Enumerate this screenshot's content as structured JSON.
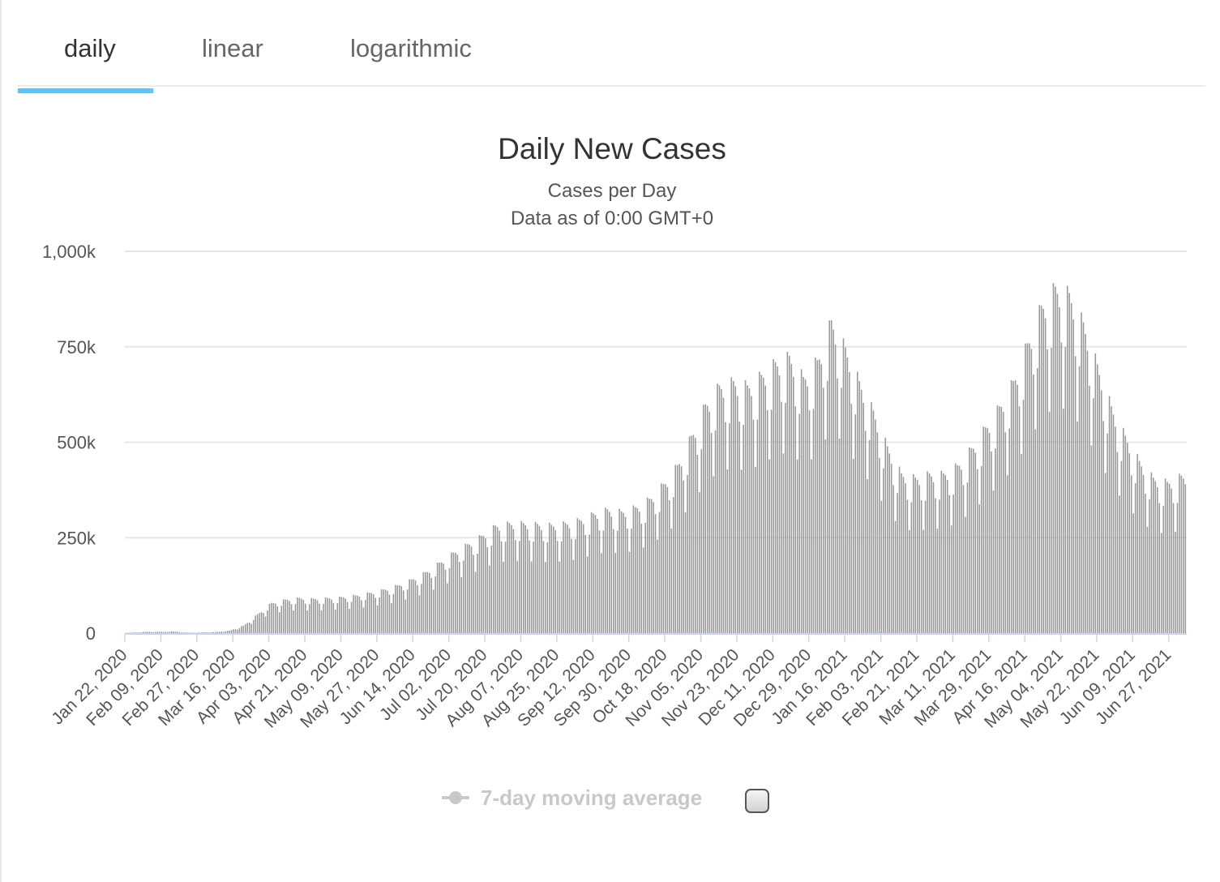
{
  "tabs": [
    {
      "label": "daily",
      "active": true
    },
    {
      "label": "linear",
      "active": false
    },
    {
      "label": "logarithmic",
      "active": false
    }
  ],
  "colors": {
    "tab_indicator": "#62c2f2",
    "bars": "#999999",
    "grid": "#e6e6e6",
    "legend_inactive": "#c8c8c8"
  },
  "legend": {
    "label": "7-day moving average",
    "enabled": false
  },
  "chart_data": {
    "type": "bar",
    "title": "Daily New Cases",
    "subtitle_lines": [
      "Cases per Day",
      "Data as of 0:00 GMT+0"
    ],
    "ylim": [
      0,
      1000000
    ],
    "yticks": [
      {
        "value": 0,
        "label": "0"
      },
      {
        "value": 250000,
        "label": "250k"
      },
      {
        "value": 500000,
        "label": "500k"
      },
      {
        "value": 750000,
        "label": "750k"
      },
      {
        "value": 1000000,
        "label": "1,000k"
      }
    ],
    "x_start": "2020-01-22",
    "x_end": "2021-07-05",
    "xtick_labels": [
      "Jan 22, 2020",
      "Feb 09, 2020",
      "Feb 27, 2020",
      "Mar 16, 2020",
      "Apr 03, 2020",
      "Apr 21, 2020",
      "May 09, 2020",
      "May 27, 2020",
      "Jun 14, 2020",
      "Jul 02, 2020",
      "Jul 20, 2020",
      "Aug 07, 2020",
      "Aug 25, 2020",
      "Sep 12, 2020",
      "Sep 30, 2020",
      "Oct 18, 2020",
      "Nov 05, 2020",
      "Nov 23, 2020",
      "Dec 11, 2020",
      "Dec 29, 2020",
      "Jan 16, 2021",
      "Feb 03, 2021",
      "Feb 21, 2021",
      "Mar 11, 2021",
      "Mar 29, 2021",
      "Apr 16, 2021",
      "May 04, 2021",
      "May 22, 2021",
      "Jun 09, 2021",
      "Jun 27, 2021"
    ],
    "weekly_avg": [
      {
        "week_of": "2020-01-22",
        "value": 1000
      },
      {
        "week_of": "2020-01-29",
        "value": 3000
      },
      {
        "week_of": "2020-02-05",
        "value": 3000
      },
      {
        "week_of": "2020-02-12",
        "value": 4000
      },
      {
        "week_of": "2020-02-19",
        "value": 1000
      },
      {
        "week_of": "2020-02-26",
        "value": 1500
      },
      {
        "week_of": "2020-03-04",
        "value": 2500
      },
      {
        "week_of": "2020-03-11",
        "value": 6000
      },
      {
        "week_of": "2020-03-18",
        "value": 18000
      },
      {
        "week_of": "2020-03-25",
        "value": 45000
      },
      {
        "week_of": "2020-04-01",
        "value": 72000
      },
      {
        "week_of": "2020-04-08",
        "value": 80000
      },
      {
        "week_of": "2020-04-15",
        "value": 84000
      },
      {
        "week_of": "2020-04-22",
        "value": 82000
      },
      {
        "week_of": "2020-04-29",
        "value": 84000
      },
      {
        "week_of": "2020-05-06",
        "value": 86000
      },
      {
        "week_of": "2020-05-13",
        "value": 90000
      },
      {
        "week_of": "2020-05-20",
        "value": 96000
      },
      {
        "week_of": "2020-05-27",
        "value": 104000
      },
      {
        "week_of": "2020-06-03",
        "value": 114000
      },
      {
        "week_of": "2020-06-10",
        "value": 128000
      },
      {
        "week_of": "2020-06-17",
        "value": 145000
      },
      {
        "week_of": "2020-06-24",
        "value": 168000
      },
      {
        "week_of": "2020-07-01",
        "value": 192000
      },
      {
        "week_of": "2020-07-08",
        "value": 212000
      },
      {
        "week_of": "2020-07-15",
        "value": 232000
      },
      {
        "week_of": "2020-07-22",
        "value": 256000
      },
      {
        "week_of": "2020-07-29",
        "value": 262000
      },
      {
        "week_of": "2020-08-05",
        "value": 262000
      },
      {
        "week_of": "2020-08-12",
        "value": 260000
      },
      {
        "week_of": "2020-08-19",
        "value": 258000
      },
      {
        "week_of": "2020-08-26",
        "value": 262000
      },
      {
        "week_of": "2020-09-02",
        "value": 270000
      },
      {
        "week_of": "2020-09-09",
        "value": 285000
      },
      {
        "week_of": "2020-09-16",
        "value": 295000
      },
      {
        "week_of": "2020-09-23",
        "value": 290000
      },
      {
        "week_of": "2020-09-30",
        "value": 300000
      },
      {
        "week_of": "2020-10-07",
        "value": 320000
      },
      {
        "week_of": "2020-10-14",
        "value": 355000
      },
      {
        "week_of": "2020-10-21",
        "value": 400000
      },
      {
        "week_of": "2020-10-28",
        "value": 470000
      },
      {
        "week_of": "2020-11-04",
        "value": 545000
      },
      {
        "week_of": "2020-11-11",
        "value": 590000
      },
      {
        "week_of": "2020-11-18",
        "value": 600000
      },
      {
        "week_of": "2020-11-25",
        "value": 590000
      },
      {
        "week_of": "2020-12-02",
        "value": 615000
      },
      {
        "week_of": "2020-12-09",
        "value": 645000
      },
      {
        "week_of": "2020-12-16",
        "value": 660000
      },
      {
        "week_of": "2020-12-23",
        "value": 610000
      },
      {
        "week_of": "2020-12-30",
        "value": 650000
      },
      {
        "week_of": "2021-01-06",
        "value": 745000
      },
      {
        "week_of": "2021-01-13",
        "value": 680000
      },
      {
        "week_of": "2021-01-20",
        "value": 600000
      },
      {
        "week_of": "2021-01-27",
        "value": 530000
      },
      {
        "week_of": "2021-02-03",
        "value": 445000
      },
      {
        "week_of": "2021-02-10",
        "value": 380000
      },
      {
        "week_of": "2021-02-17",
        "value": 370000
      },
      {
        "week_of": "2021-02-24",
        "value": 380000
      },
      {
        "week_of": "2021-03-03",
        "value": 380000
      },
      {
        "week_of": "2021-03-10",
        "value": 400000
      },
      {
        "week_of": "2021-03-17",
        "value": 440000
      },
      {
        "week_of": "2021-03-24",
        "value": 490000
      },
      {
        "week_of": "2021-03-31",
        "value": 540000
      },
      {
        "week_of": "2021-04-07",
        "value": 600000
      },
      {
        "week_of": "2021-04-14",
        "value": 690000
      },
      {
        "week_of": "2021-04-21",
        "value": 780000
      },
      {
        "week_of": "2021-04-28",
        "value": 825000
      },
      {
        "week_of": "2021-05-05",
        "value": 810000
      },
      {
        "week_of": "2021-05-12",
        "value": 740000
      },
      {
        "week_of": "2021-05-19",
        "value": 640000
      },
      {
        "week_of": "2021-05-26",
        "value": 540000
      },
      {
        "week_of": "2021-06-02",
        "value": 470000
      },
      {
        "week_of": "2021-06-09",
        "value": 410000
      },
      {
        "week_of": "2021-06-16",
        "value": 370000
      },
      {
        "week_of": "2021-06-23",
        "value": 360000
      },
      {
        "week_of": "2021-06-30",
        "value": 375000
      }
    ],
    "daily_swing": [
      0.72,
      0.92,
      1.12,
      1.1,
      1.08,
      1.04,
      0.93
    ]
  }
}
